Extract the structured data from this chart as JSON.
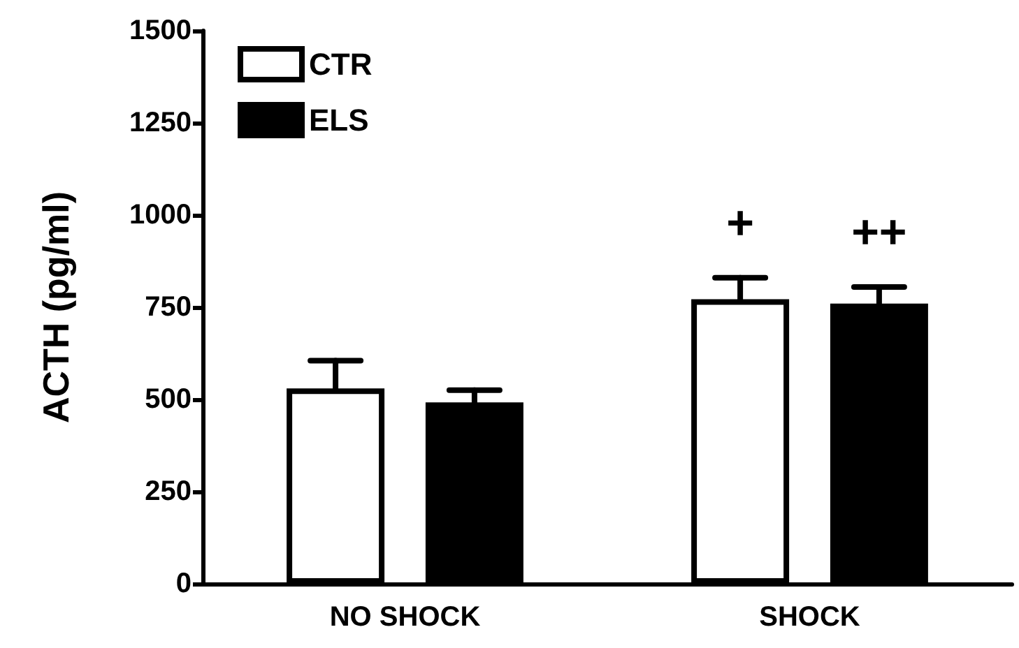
{
  "chart_data": {
    "type": "bar",
    "ylabel": "ACTH (pg/ml)",
    "categories": [
      "NO SHOCK",
      "SHOCK"
    ],
    "series": [
      {
        "name": "CTR",
        "color": "#ffffff",
        "values": [
          530,
          772
        ],
        "errors": [
          75,
          58
        ]
      },
      {
        "name": "ELS",
        "color": "#000000",
        "values": [
          492,
          760
        ],
        "errors": [
          33,
          45
        ]
      }
    ],
    "ylim": [
      0,
      1500
    ],
    "yticks": [
      0,
      250,
      500,
      750,
      1000,
      1250,
      1500
    ],
    "grid": false,
    "legend": "top left",
    "annotations": [
      "+",
      "++"
    ]
  }
}
